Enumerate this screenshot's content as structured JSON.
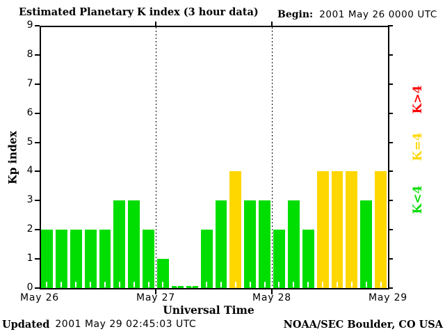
{
  "header": {
    "title": "Estimated Planetary K index (3 hour data)",
    "begin_label": "Begin:",
    "begin_value": "2001 May 26 0000 UTC"
  },
  "chart_data": {
    "type": "bar",
    "title": "Estimated Planetary K index (3 hour data)",
    "xlabel": "Universal Time",
    "ylabel": "Kp index",
    "ylim": [
      0,
      9
    ],
    "y_ticks": [
      0,
      1,
      2,
      3,
      4,
      5,
      6,
      7,
      8,
      9
    ],
    "x_ticks": [
      "May 26",
      "May 27",
      "May 28",
      "May 29"
    ],
    "bar_interval_hours": 3,
    "grid": "dotted vertical lines at day boundaries",
    "days": [
      {
        "date": "May 26",
        "values": [
          2,
          2,
          2,
          2,
          2,
          3,
          3,
          2
        ]
      },
      {
        "date": "May 27",
        "values": [
          1,
          0,
          0,
          2,
          3,
          4,
          3,
          3
        ]
      },
      {
        "date": "May 28",
        "values": [
          2,
          3,
          2,
          4,
          4,
          4,
          3,
          4
        ]
      }
    ],
    "colors": {
      "low": "#00dd00",
      "mid": "#ffd700",
      "high": "#ff0000"
    },
    "color_rule": "K<4 green, K=4 yellow, K>4 red"
  },
  "legend": {
    "items": [
      {
        "label": "K>4",
        "color": "#ff0000"
      },
      {
        "label": "K=4",
        "color": "#ffd700"
      },
      {
        "label": "K<4",
        "color": "#00dd00"
      }
    ],
    "position": "right, rotated 90deg"
  },
  "footer": {
    "updated_label": "Updated",
    "updated_value": "2001 May 29 02:45:03 UTC",
    "credit": "NOAA/SEC Boulder, CO USA"
  }
}
